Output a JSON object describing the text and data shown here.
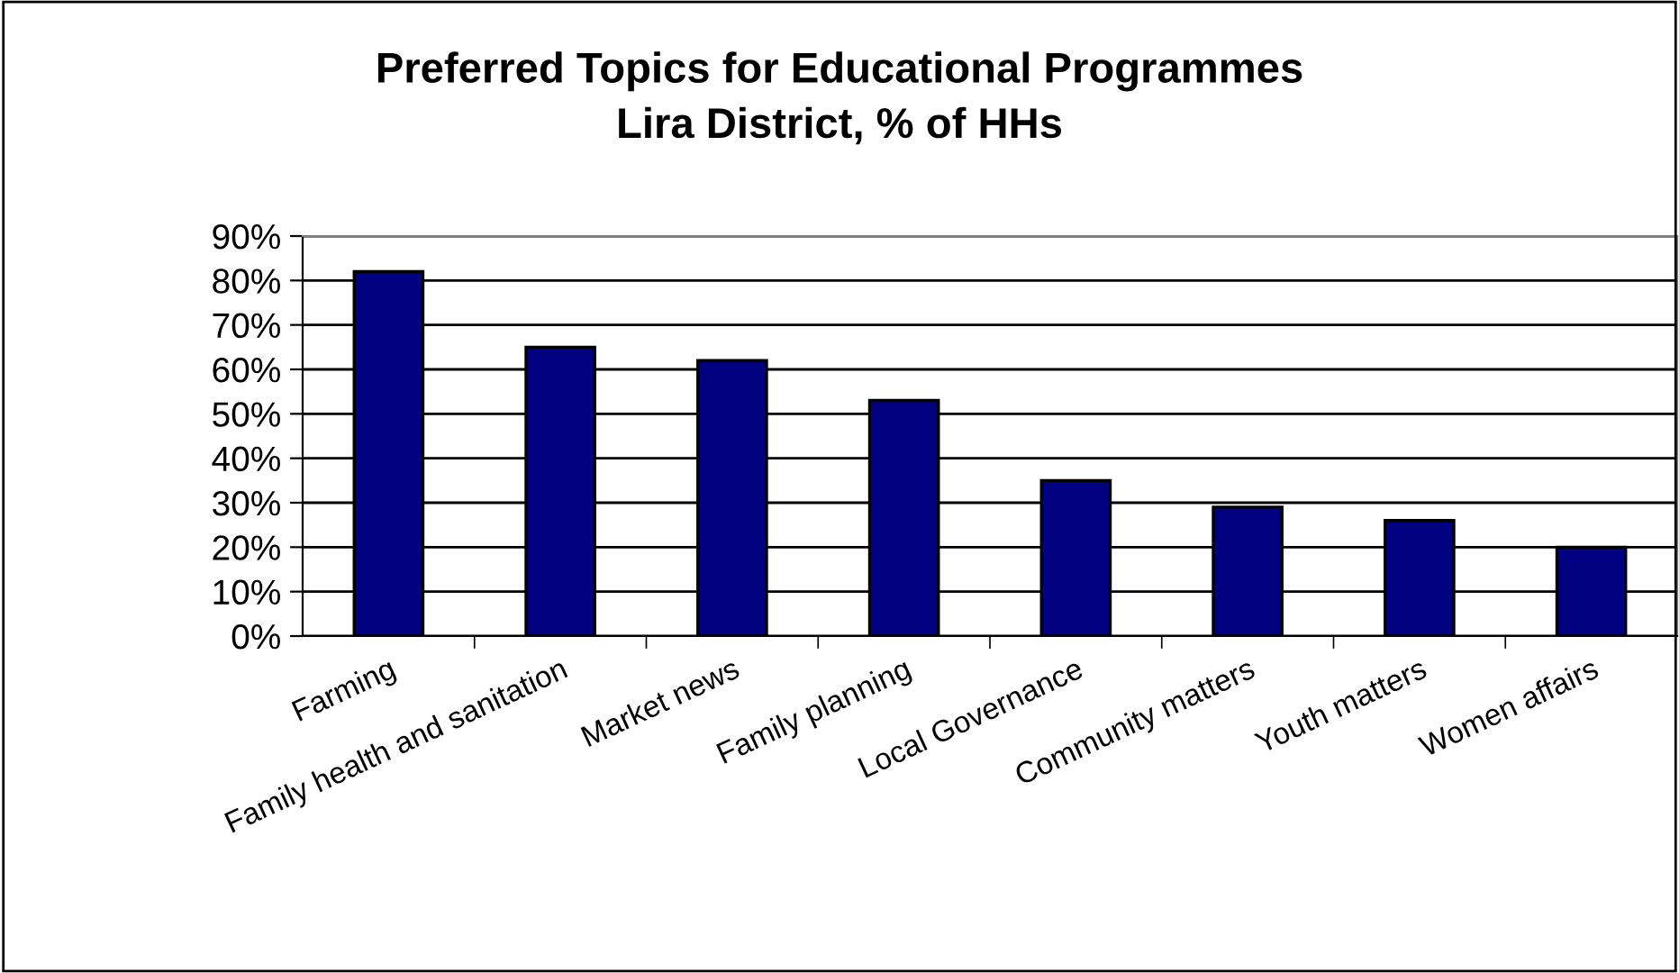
{
  "chart_data": {
    "type": "bar",
    "title": "Preferred Topics for Educational Programmes\nLira District, % of HHs",
    "categories": [
      "Farming",
      "Family health and sanitation",
      "Market news",
      "Family planning",
      "Local Governance",
      "Community matters",
      "Youth matters",
      "Women affairs"
    ],
    "values": [
      82,
      65,
      62,
      53,
      35,
      29,
      26,
      20
    ],
    "color": "#000080",
    "ylim": [
      0,
      90
    ],
    "yticks": [
      {
        "value": 0,
        "label": "0%"
      },
      {
        "value": 10,
        "label": "10%"
      },
      {
        "value": 20,
        "label": "20%"
      },
      {
        "value": 30,
        "label": "30%"
      },
      {
        "value": 40,
        "label": "40%"
      },
      {
        "value": 50,
        "label": "50%"
      },
      {
        "value": 60,
        "label": "60%"
      },
      {
        "value": 70,
        "label": "70%"
      },
      {
        "value": 80,
        "label": "80%"
      },
      {
        "value": 90,
        "label": "90%"
      }
    ],
    "grid": "y"
  }
}
